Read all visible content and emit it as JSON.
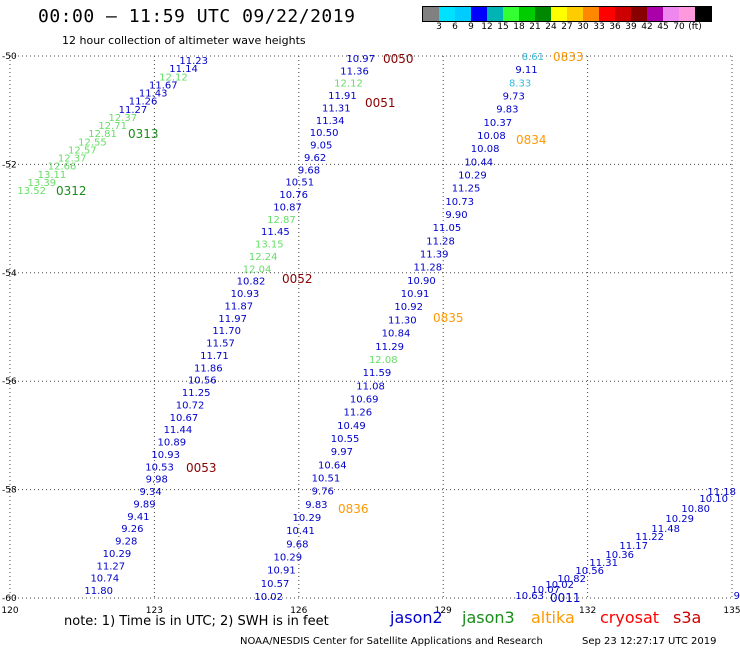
{
  "header": {
    "title": "00:00 – 11:59 UTC 09/22/2019",
    "subtitle": "12 hour collection of altimeter wave heights"
  },
  "colorbar": {
    "colors": [
      "#808080",
      "#00e0ff",
      "#00ccff",
      "#0000ff",
      "#00b4b4",
      "#33ff33",
      "#00cc00",
      "#008800",
      "#ffff00",
      "#ffcc00",
      "#ff8800",
      "#ff0000",
      "#cc0000",
      "#880000",
      "#aa00aa",
      "#ee88ee",
      "#ff99dd",
      "#000000"
    ],
    "ticks": [
      "3",
      "6",
      "9",
      "12",
      "15",
      "18",
      "21",
      "24",
      "27",
      "30",
      "33",
      "36",
      "39",
      "42",
      "45",
      "70",
      "(ft)"
    ]
  },
  "axes": {
    "lon": [
      120,
      135
    ],
    "lat": [
      -60,
      -50
    ],
    "x_ticks": [
      "120",
      "123",
      "126",
      "129",
      "132",
      "135"
    ],
    "y_ticks": [
      "-50",
      "-52",
      "-54",
      "-56",
      "-58",
      "-60"
    ]
  },
  "colors": {
    "jason2": "#0000cc",
    "jason3": "#1a8c1a",
    "jason3_light": "#66dd66",
    "altika": "#ff9900",
    "altika_light": "#33bbdd",
    "s3a": "#880000"
  },
  "tracks": {
    "track1": {
      "sat": "jason2",
      "values": [
        "11.23",
        "11.14",
        "12.12",
        "11.67",
        "11.43",
        "11.26",
        "11.27",
        "12.37",
        "12.71",
        "12.81",
        "12.55",
        "12.57",
        "12.37",
        "12.66",
        "13.11",
        "13.39",
        "13.52"
      ],
      "labels": [
        "0313",
        "0312"
      ]
    },
    "track2": {
      "values": [
        "10.97",
        "11.36",
        "12.12",
        "11.91",
        "11.31",
        "11.34",
        "10.50",
        "9.05",
        "9.62",
        "9.68",
        "10.51",
        "10.76",
        "10.87",
        "12.87",
        "11.45",
        "13.15",
        "12.24",
        "12.04",
        "10.82",
        "10.93",
        "11.87",
        "11.97",
        "11.70",
        "11.57",
        "11.71",
        "11.86",
        "10.56",
        "11.25",
        "10.72",
        "10.67",
        "11.44",
        "10.89",
        "10.93",
        "10.53",
        "9.98",
        "9.34",
        "9.89",
        "9.41",
        "9.26",
        "9.28",
        "10.29",
        "11.27",
        "10.74",
        "11.80"
      ],
      "light": [
        2,
        13,
        15,
        16,
        17
      ],
      "labels": [
        "0050",
        "0051",
        "0052",
        "0053"
      ]
    },
    "track3": {
      "values": [
        "8.61",
        "9.11",
        "8.33",
        "9.73",
        "9.83",
        "10.37",
        "10.08",
        "10.08",
        "10.44",
        "10.29",
        "11.25",
        "10.73",
        "9.90",
        "11.05",
        "11.28",
        "11.39",
        "11.28",
        "10.90",
        "10.91",
        "10.92",
        "11.30",
        "10.84",
        "11.29",
        "12.08",
        "11.59",
        "11.08",
        "10.69",
        "11.26",
        "10.49",
        "10.55",
        "9.97",
        "10.64",
        "10.51",
        "9.76",
        "9.83",
        "10.29",
        "10.41",
        "9.68",
        "10.29",
        "10.91",
        "10.57",
        "10.02"
      ],
      "light": [
        0,
        2
      ],
      "light_green": [
        23
      ],
      "labels": [
        "0833",
        "0834",
        "0835",
        "0836"
      ]
    },
    "track4": {
      "values": [
        "9",
        "11.18",
        "10.10",
        "10.80",
        "10.29",
        "11.48",
        "11.22",
        "11.17",
        "10.36",
        "11.31",
        "10.56",
        "10.82",
        "10.02",
        "10.07",
        "10.63"
      ],
      "labels": [
        "0011"
      ]
    }
  },
  "footer": {
    "note": "note:  1) Time is in UTC;  2) SWH is in feet",
    "legend": [
      "jason2",
      "jason3",
      "altika",
      "cryosat",
      "s3a"
    ],
    "credit": "NOAA/NESDIS Center for Satellite Applications and Research",
    "stamp": "Sep 23 12:27:17 UTC 2019"
  }
}
